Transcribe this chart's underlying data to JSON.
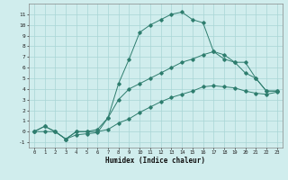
{
  "title": "",
  "xlabel": "Humidex (Indice chaleur)",
  "x_values": [
    0,
    1,
    2,
    3,
    4,
    5,
    6,
    7,
    8,
    9,
    10,
    11,
    12,
    13,
    14,
    15,
    16,
    17,
    18,
    19,
    20,
    21,
    22,
    23
  ],
  "line1": [
    0,
    0.5,
    0,
    -0.7,
    -0.3,
    -0.2,
    -0.1,
    1.3,
    4.5,
    6.8,
    9.3,
    10.0,
    10.5,
    11.0,
    11.2,
    10.5,
    10.2,
    7.5,
    7.2,
    6.5,
    5.5,
    5.0,
    3.8,
    3.8
  ],
  "line2": [
    0,
    0.5,
    0,
    -0.7,
    0.0,
    0.0,
    0.2,
    1.3,
    3.0,
    4.0,
    4.5,
    5.0,
    5.5,
    6.0,
    6.5,
    6.8,
    7.2,
    7.5,
    6.8,
    6.5,
    6.5,
    5.0,
    3.8,
    3.8
  ],
  "line3": [
    0,
    0.0,
    0,
    -0.7,
    0.0,
    0.0,
    0.0,
    0.2,
    0.8,
    1.2,
    1.8,
    2.3,
    2.8,
    3.2,
    3.5,
    3.8,
    4.2,
    4.3,
    4.2,
    4.1,
    3.8,
    3.6,
    3.5,
    3.7
  ],
  "color": "#2e7d6e",
  "bg_color": "#d0eded",
  "grid_color": "#a8d5d5",
  "ylim": [
    -1.5,
    12
  ],
  "xlim": [
    -0.5,
    23.5
  ],
  "yticks": [
    -1,
    0,
    1,
    2,
    3,
    4,
    5,
    6,
    7,
    8,
    9,
    10,
    11
  ],
  "xticks": [
    0,
    1,
    2,
    3,
    4,
    5,
    6,
    7,
    8,
    9,
    10,
    11,
    12,
    13,
    14,
    15,
    16,
    17,
    18,
    19,
    20,
    21,
    22,
    23
  ]
}
